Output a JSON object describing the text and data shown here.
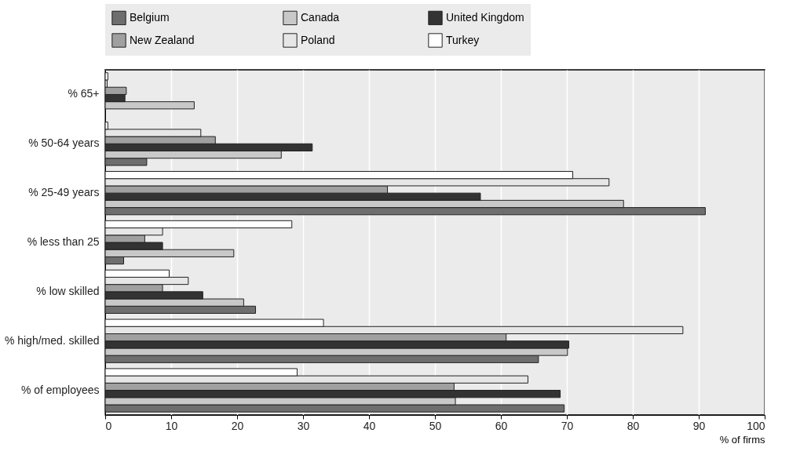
{
  "chart_data": {
    "type": "bar",
    "orientation": "horizontal",
    "xlabel": "% of firms",
    "categories": [
      "% 65+",
      "% 50-64 years",
      "% 25-49 years",
      "% less than 25",
      "% low skilled",
      "% high/med. skilled",
      "% of employees"
    ],
    "series": [
      {
        "name": "Belgium",
        "color": "#6e6e6e",
        "values": [
          null,
          6.3,
          91.0,
          2.8,
          22.8,
          65.7,
          69.6
        ]
      },
      {
        "name": "Canada",
        "color": "#c8c8c8",
        "values": [
          13.5,
          26.7,
          78.6,
          19.5,
          21.0,
          70.1,
          53.1
        ]
      },
      {
        "name": "United Kingdom",
        "color": "#333333",
        "values": [
          3.0,
          31.4,
          56.9,
          8.7,
          14.8,
          70.3,
          69.0
        ]
      },
      {
        "name": "New Zealand",
        "color": "#a0a0a0",
        "values": [
          3.2,
          16.7,
          42.8,
          6.0,
          8.7,
          60.8,
          52.9
        ]
      },
      {
        "name": "Poland",
        "color": "#e6e6e6",
        "values": [
          0.3,
          14.5,
          76.4,
          8.7,
          12.6,
          87.6,
          64.1
        ]
      },
      {
        "name": "Turkey",
        "color": "#ffffff",
        "values": [
          0.4,
          0.4,
          70.9,
          28.3,
          9.7,
          33.1,
          29.1
        ]
      }
    ],
    "xlim": [
      0,
      100
    ],
    "xticks": [
      0,
      10,
      20,
      30,
      40,
      50,
      60,
      70,
      80,
      90,
      100
    ],
    "grid": "x",
    "legend": "top"
  }
}
